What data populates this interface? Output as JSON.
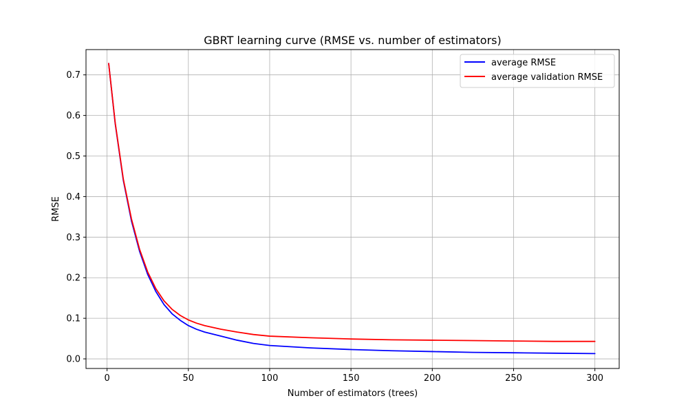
{
  "chart_data": {
    "type": "line",
    "title": "GBRT learning curve (RMSE vs. number of estimators)",
    "xlabel": "Number of estimators (trees)",
    "ylabel": "RMSE",
    "xlim": [
      -12.95,
      314.95
    ],
    "ylim": [
      -0.0237,
      0.7623
    ],
    "xticks": [
      0,
      50,
      100,
      150,
      200,
      250,
      300
    ],
    "yticks": [
      0.0,
      0.1,
      0.2,
      0.3,
      0.4,
      0.5,
      0.6,
      0.7
    ],
    "ytick_labels": [
      "0.0",
      "0.1",
      "0.2",
      "0.3",
      "0.4",
      "0.5",
      "0.6",
      "0.7"
    ],
    "grid": true,
    "legend_position": "upper-right",
    "series": [
      {
        "name": "average RMSE",
        "color": "#0000ff",
        "x": [
          1,
          5,
          10,
          15,
          20,
          25,
          30,
          35,
          40,
          45,
          50,
          55,
          60,
          70,
          80,
          90,
          100,
          125,
          150,
          175,
          200,
          225,
          250,
          275,
          300
        ],
        "y": [
          0.728,
          0.58,
          0.44,
          0.34,
          0.265,
          0.208,
          0.166,
          0.134,
          0.111,
          0.095,
          0.082,
          0.073,
          0.066,
          0.056,
          0.046,
          0.038,
          0.033,
          0.027,
          0.023,
          0.02,
          0.018,
          0.016,
          0.015,
          0.014,
          0.013
        ]
      },
      {
        "name": "average validation RMSE",
        "color": "#ff0000",
        "x": [
          1,
          5,
          10,
          15,
          20,
          25,
          30,
          35,
          40,
          45,
          50,
          55,
          60,
          70,
          80,
          90,
          100,
          125,
          150,
          175,
          200,
          225,
          250,
          275,
          300
        ],
        "y": [
          0.728,
          0.582,
          0.443,
          0.345,
          0.27,
          0.214,
          0.173,
          0.143,
          0.122,
          0.107,
          0.096,
          0.088,
          0.082,
          0.073,
          0.066,
          0.06,
          0.056,
          0.052,
          0.049,
          0.047,
          0.046,
          0.045,
          0.044,
          0.043,
          0.043
        ]
      }
    ]
  }
}
